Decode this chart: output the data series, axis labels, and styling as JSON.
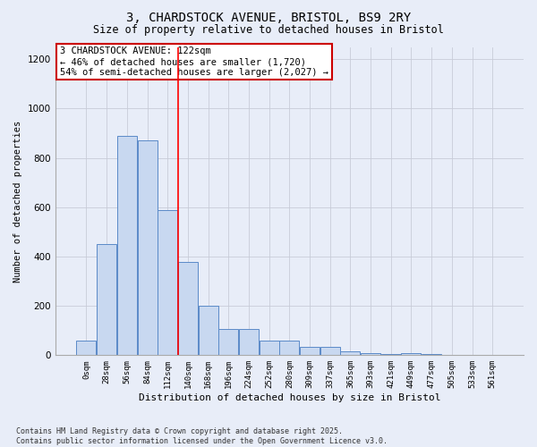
{
  "title1": "3, CHARDSTOCK AVENUE, BRISTOL, BS9 2RY",
  "title2": "Size of property relative to detached houses in Bristol",
  "xlabel": "Distribution of detached houses by size in Bristol",
  "ylabel": "Number of detached properties",
  "bin_labels": [
    "0sqm",
    "28sqm",
    "56sqm",
    "84sqm",
    "112sqm",
    "140sqm",
    "168sqm",
    "196sqm",
    "224sqm",
    "252sqm",
    "280sqm",
    "309sqm",
    "337sqm",
    "365sqm",
    "393sqm",
    "421sqm",
    "449sqm",
    "477sqm",
    "505sqm",
    "533sqm",
    "561sqm"
  ],
  "bar_heights": [
    60,
    450,
    890,
    870,
    590,
    380,
    200,
    105,
    105,
    60,
    60,
    35,
    35,
    15,
    10,
    5,
    10,
    5,
    0,
    0,
    0
  ],
  "bar_color": "#c8d8f0",
  "bar_edge_color": "#5b8ac8",
  "grid_color": "#c8ccd8",
  "vline_x": 4.5,
  "vline_color": "red",
  "annotation_title": "3 CHARDSTOCK AVENUE: 122sqm",
  "annotation_line1": "← 46% of detached houses are smaller (1,720)",
  "annotation_line2": "54% of semi-detached houses are larger (2,027) →",
  "annotation_box_color": "#ffffff",
  "annotation_box_edge": "#cc0000",
  "ylim": [
    0,
    1250
  ],
  "yticks": [
    0,
    200,
    400,
    600,
    800,
    1000,
    1200
  ],
  "footnote": "Contains HM Land Registry data © Crown copyright and database right 2025.\nContains public sector information licensed under the Open Government Licence v3.0.",
  "bg_color": "#e8edf8"
}
